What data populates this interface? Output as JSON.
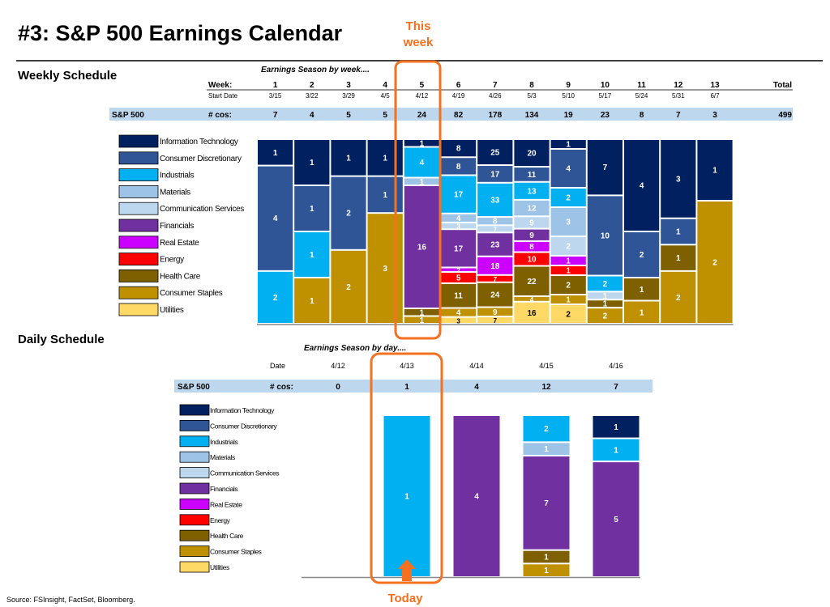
{
  "title": "#3: S&P 500 Earnings Calendar",
  "source": "Source: FSInsight, FactSet, Bloomberg.",
  "annotations": {
    "this_week_1": "This",
    "this_week_2": "week",
    "today": "Today",
    "accent": "#f5701f"
  },
  "sectors": [
    {
      "name": "Information Technology",
      "color": "#002060",
      "text": "#ffffff"
    },
    {
      "name": "Consumer Discretionary",
      "color": "#2f5597",
      "text": "#ffffff"
    },
    {
      "name": "Industrials",
      "color": "#00b0f0",
      "text": "#ffffff"
    },
    {
      "name": "Materials",
      "color": "#9dc3e6",
      "text": "#ffffff"
    },
    {
      "name": "Communication Services",
      "color": "#bdd7ee",
      "text": "#ffffff"
    },
    {
      "name": "Financials",
      "color": "#7030a0",
      "text": "#ffffff"
    },
    {
      "name": "Real Estate",
      "color": "#cc00ff",
      "text": "#ffffff"
    },
    {
      "name": "Energy",
      "color": "#ff0000",
      "text": "#ffffff"
    },
    {
      "name": "Health Care",
      "color": "#7f6000",
      "text": "#ffffff"
    },
    {
      "name": "Consumer Staples",
      "color": "#bf9000",
      "text": "#ffffff"
    },
    {
      "name": "Utilities",
      "color": "#ffd966",
      "text": "#000000"
    }
  ],
  "weekly": {
    "heading": "Weekly Schedule",
    "subtitle": "Earnings Season by week....",
    "week_label": "Week:",
    "start_label": "Start Date",
    "index_label": "S&P 500",
    "cos_label": "# cos:",
    "total_label": "Total",
    "total": "499",
    "band_color": "#bdd7ee"
  },
  "daily": {
    "heading": "Daily Schedule",
    "subtitle": "Earnings Season by day....",
    "date_label": "Date",
    "index_label": "S&P 500",
    "cos_label": "# cos:"
  },
  "chart_data": [
    {
      "type": "bar",
      "stacked": "percent",
      "title": "Earnings Season by week....",
      "categories": [
        "1",
        "2",
        "3",
        "4",
        "5",
        "6",
        "7",
        "8",
        "9",
        "10",
        "11",
        "12",
        "13"
      ],
      "start_dates": [
        "3/15",
        "3/22",
        "3/29",
        "4/5",
        "4/12",
        "4/19",
        "4/26",
        "5/3",
        "5/10",
        "5/17",
        "5/24",
        "5/31",
        "6/7"
      ],
      "totals": [
        7,
        4,
        5,
        5,
        24,
        82,
        178,
        134,
        19,
        23,
        8,
        7,
        3
      ],
      "highlight": "5",
      "series": [
        {
          "name": "Information Technology",
          "values": [
            1,
            1,
            1,
            1,
            1,
            8,
            25,
            20,
            1,
            7,
            4,
            3,
            1
          ]
        },
        {
          "name": "Consumer Discretionary",
          "values": [
            4,
            1,
            2,
            1,
            0,
            8,
            17,
            11,
            4,
            10,
            2,
            1,
            0
          ]
        },
        {
          "name": "Industrials",
          "values": [
            2,
            1,
            0,
            0,
            4,
            17,
            33,
            13,
            2,
            2,
            0,
            0,
            0
          ]
        },
        {
          "name": "Materials",
          "values": [
            0,
            0,
            0,
            0,
            1,
            4,
            8,
            12,
            3,
            0,
            0,
            0,
            0
          ]
        },
        {
          "name": "Communication Services",
          "values": [
            0,
            0,
            0,
            0,
            0,
            3,
            7,
            9,
            2,
            1,
            0,
            0,
            0
          ]
        },
        {
          "name": "Financials",
          "values": [
            0,
            0,
            0,
            0,
            16,
            17,
            23,
            9,
            0,
            0,
            0,
            0,
            0
          ]
        },
        {
          "name": "Real Estate",
          "values": [
            0,
            0,
            0,
            0,
            0,
            2,
            18,
            8,
            1,
            0,
            0,
            0,
            0
          ]
        },
        {
          "name": "Energy",
          "values": [
            0,
            0,
            0,
            0,
            0,
            5,
            7,
            10,
            1,
            0,
            0,
            0,
            0
          ]
        },
        {
          "name": "Health Care",
          "values": [
            0,
            0,
            0,
            0,
            1,
            11,
            24,
            22,
            2,
            1,
            1,
            1,
            0
          ]
        },
        {
          "name": "Consumer Staples",
          "values": [
            0,
            1,
            2,
            3,
            1,
            4,
            9,
            4,
            1,
            2,
            1,
            2,
            2
          ]
        },
        {
          "name": "Utilities",
          "values": [
            0,
            0,
            0,
            0,
            0,
            3,
            7,
            16,
            2,
            0,
            0,
            0,
            0
          ]
        }
      ]
    },
    {
      "type": "bar",
      "stacked": "count",
      "title": "Earnings Season by day....",
      "categories": [
        "4/12",
        "4/13",
        "4/14",
        "4/15",
        "4/16"
      ],
      "totals": [
        0,
        1,
        4,
        12,
        7
      ],
      "highlight": "4/13",
      "series": [
        {
          "name": "Information Technology",
          "values": [
            0,
            0,
            0,
            0,
            1
          ]
        },
        {
          "name": "Consumer Discretionary",
          "values": [
            0,
            0,
            0,
            0,
            0
          ]
        },
        {
          "name": "Industrials",
          "values": [
            0,
            1,
            0,
            2,
            1
          ]
        },
        {
          "name": "Materials",
          "values": [
            0,
            0,
            0,
            1,
            0
          ]
        },
        {
          "name": "Communication Services",
          "values": [
            0,
            0,
            0,
            0,
            0
          ]
        },
        {
          "name": "Financials",
          "values": [
            0,
            0,
            4,
            7,
            5
          ]
        },
        {
          "name": "Real Estate",
          "values": [
            0,
            0,
            0,
            0,
            0
          ]
        },
        {
          "name": "Energy",
          "values": [
            0,
            0,
            0,
            0,
            0
          ]
        },
        {
          "name": "Health Care",
          "values": [
            0,
            0,
            0,
            1,
            0
          ]
        },
        {
          "name": "Consumer Staples",
          "values": [
            0,
            0,
            0,
            1,
            0
          ]
        },
        {
          "name": "Utilities",
          "values": [
            0,
            0,
            0,
            0,
            0
          ]
        }
      ]
    }
  ]
}
